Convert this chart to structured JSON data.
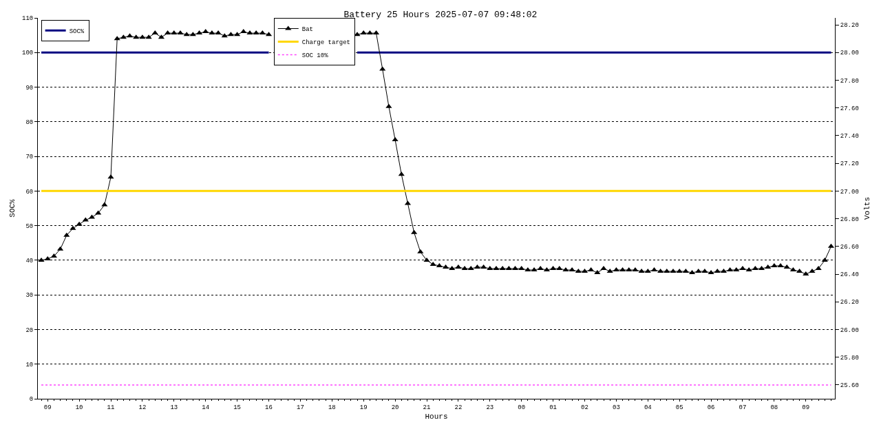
{
  "chart_data": {
    "type": "line",
    "title": "Battery 25 Hours 2025-07-07 09:48:02",
    "xlabel": "Hours",
    "ylabel": "SOC%",
    "y2label": "Volts",
    "categories": [
      null,
      "09",
      null,
      null,
      null,
      null,
      "10",
      null,
      null,
      null,
      null,
      "11",
      null,
      null,
      null,
      null,
      "12",
      null,
      null,
      null,
      null,
      "13",
      null,
      null,
      null,
      null,
      "14",
      null,
      null,
      null,
      null,
      "15",
      null,
      null,
      null,
      null,
      "16",
      null,
      null,
      null,
      null,
      "17",
      null,
      null,
      null,
      null,
      "18",
      null,
      null,
      null,
      null,
      "19",
      null,
      null,
      null,
      null,
      "20",
      null,
      null,
      null,
      null,
      "21",
      null,
      null,
      null,
      null,
      "22",
      null,
      null,
      null,
      null,
      "23",
      null,
      null,
      null,
      null,
      "00",
      null,
      null,
      null,
      null,
      "01",
      null,
      null,
      null,
      null,
      "02",
      null,
      null,
      null,
      null,
      "03",
      null,
      null,
      null,
      null,
      "04",
      null,
      null,
      null,
      null,
      "05",
      null,
      null,
      null,
      null,
      "06",
      null,
      null,
      null,
      null,
      "07",
      null,
      null,
      null,
      null,
      "08",
      null,
      null,
      null,
      null,
      "09",
      null,
      null,
      null,
      null
    ],
    "ylim": [
      0,
      110
    ],
    "yticks": [
      0,
      10,
      20,
      30,
      40,
      50,
      60,
      70,
      80,
      90,
      100,
      110
    ],
    "y2lim": [
      25.5,
      28.25
    ],
    "y2ticks": [
      {
        "value": 25.6,
        "label": "25.60"
      },
      {
        "value": 25.8,
        "label": "25.80"
      },
      {
        "value": 26.0,
        "label": "26.00"
      },
      {
        "value": 26.2,
        "label": "26.20"
      },
      {
        "value": 26.4,
        "label": "26.40"
      },
      {
        "value": 26.6,
        "label": "26.60"
      },
      {
        "value": 26.8,
        "label": "26.80"
      },
      {
        "value": 27.0,
        "label": "27.00"
      },
      {
        "value": 27.2,
        "label": "27.20"
      },
      {
        "value": 27.4,
        "label": "27.40"
      },
      {
        "value": 27.6,
        "label": "27.60"
      },
      {
        "value": 27.8,
        "label": "27.80"
      },
      {
        "value": 28.0,
        "label": "28.00"
      },
      {
        "value": 28.2,
        "label": "28.20"
      }
    ],
    "grid": "y",
    "legend": "top left",
    "line_style": "solid",
    "marker": "none",
    "series": [
      {
        "name": "SOC%",
        "color": "#000080",
        "values": [
          100,
          100,
          100,
          100,
          100,
          100,
          100,
          100,
          100,
          100,
          100,
          100,
          100,
          100,
          100,
          100,
          100,
          100,
          100,
          100,
          100,
          100,
          100,
          100,
          100,
          100,
          100,
          100,
          100,
          100,
          100,
          100,
          100,
          100,
          100,
          100,
          100,
          null,
          null,
          null,
          null,
          null,
          null,
          null,
          null,
          null,
          null,
          null,
          null,
          null,
          100,
          100,
          100,
          100,
          100,
          100,
          100,
          100,
          100,
          100,
          100,
          100,
          100,
          100,
          100,
          100,
          100,
          100,
          100,
          100,
          100,
          100,
          100,
          100,
          100,
          100,
          100,
          100,
          100,
          100,
          100,
          100,
          100,
          100,
          100,
          100,
          100,
          100,
          100,
          100,
          100,
          100,
          100,
          100,
          100,
          100,
          100,
          100,
          100,
          100,
          100,
          100,
          100,
          100,
          100,
          100,
          100,
          100,
          100,
          100,
          100,
          100,
          100,
          100,
          100,
          100,
          100,
          100,
          100,
          100,
          100,
          100,
          100,
          100,
          100,
          100
        ]
      },
      {
        "name": "Bat",
        "color": "#000000",
        "axis": "y2",
        "marker": "triangle",
        "values": [
          26.5,
          26.51,
          26.53,
          26.58,
          26.68,
          26.73,
          26.76,
          26.79,
          26.81,
          26.84,
          26.9,
          27.1,
          28.1,
          28.11,
          28.12,
          28.11,
          28.11,
          28.11,
          28.14,
          28.11,
          28.14,
          28.14,
          28.14,
          28.13,
          28.13,
          28.14,
          28.15,
          28.14,
          28.14,
          28.12,
          28.13,
          28.13,
          28.15,
          28.14,
          28.14,
          28.14,
          28.13,
          null,
          null,
          null,
          null,
          null,
          null,
          null,
          null,
          null,
          null,
          null,
          null,
          null,
          28.13,
          28.14,
          28.14,
          28.14,
          27.88,
          27.61,
          27.37,
          27.12,
          26.91,
          26.7,
          26.56,
          26.5,
          26.47,
          26.46,
          26.45,
          26.44,
          26.45,
          26.44,
          26.44,
          26.45,
          26.45,
          26.44,
          26.44,
          26.44,
          26.44,
          26.44,
          26.44,
          26.43,
          26.43,
          26.44,
          26.43,
          26.44,
          26.44,
          26.43,
          26.43,
          26.42,
          26.42,
          26.43,
          26.41,
          26.44,
          26.42,
          26.43,
          26.43,
          26.43,
          26.43,
          26.42,
          26.42,
          26.43,
          26.42,
          26.42,
          26.42,
          26.42,
          26.42,
          26.41,
          26.42,
          26.42,
          26.41,
          26.42,
          26.42,
          26.43,
          26.43,
          26.44,
          26.43,
          26.44,
          26.44,
          26.45,
          26.46,
          26.46,
          26.45,
          26.43,
          26.42,
          26.4,
          26.42,
          26.44,
          26.5,
          26.6
        ]
      },
      {
        "name": "Charge target",
        "color": "#ffd700",
        "axis": "y2",
        "values": [
          27.0,
          27.0,
          27.0,
          27.0,
          27.0,
          27.0,
          27.0,
          27.0,
          27.0,
          27.0,
          27.0,
          27.0,
          27.0,
          27.0,
          27.0,
          27.0,
          27.0,
          27.0,
          27.0,
          27.0,
          27.0,
          27.0,
          27.0,
          27.0,
          27.0,
          27.0,
          27.0,
          27.0,
          27.0,
          27.0,
          27.0,
          27.0,
          27.0,
          27.0,
          27.0,
          27.0,
          27.0,
          27.0,
          27.0,
          27.0,
          27.0,
          27.0,
          27.0,
          27.0,
          27.0,
          27.0,
          27.0,
          27.0,
          27.0,
          27.0,
          27.0,
          27.0,
          27.0,
          27.0,
          27.0,
          27.0,
          27.0,
          27.0,
          27.0,
          27.0,
          27.0,
          27.0,
          27.0,
          27.0,
          27.0,
          27.0,
          27.0,
          27.0,
          27.0,
          27.0,
          27.0,
          27.0,
          27.0,
          27.0,
          27.0,
          27.0,
          27.0,
          27.0,
          27.0,
          27.0,
          27.0,
          27.0,
          27.0,
          27.0,
          27.0,
          27.0,
          27.0,
          27.0,
          27.0,
          27.0,
          27.0,
          27.0,
          27.0,
          27.0,
          27.0,
          27.0,
          27.0,
          27.0,
          27.0,
          27.0,
          27.0,
          27.0,
          27.0,
          27.0,
          27.0,
          27.0,
          27.0,
          27.0,
          27.0,
          27.0,
          27.0,
          27.0,
          27.0,
          27.0,
          27.0,
          27.0,
          27.0,
          27.0,
          27.0,
          27.0,
          27.0,
          27.0,
          27.0,
          27.0,
          27.0,
          27.0
        ]
      },
      {
        "name": "SOC 10%",
        "color": "#ff44ff",
        "axis": "y2",
        "line_style": "dotted",
        "values": [
          25.6,
          25.6,
          25.6,
          25.6,
          25.6,
          25.6,
          25.6,
          25.6,
          25.6,
          25.6,
          25.6,
          25.6,
          25.6,
          25.6,
          25.6,
          25.6,
          25.6,
          25.6,
          25.6,
          25.6,
          25.6,
          25.6,
          25.6,
          25.6,
          25.6,
          25.6,
          25.6,
          25.6,
          25.6,
          25.6,
          25.6,
          25.6,
          25.6,
          25.6,
          25.6,
          25.6,
          25.6,
          25.6,
          25.6,
          25.6,
          25.6,
          25.6,
          25.6,
          25.6,
          25.6,
          25.6,
          25.6,
          25.6,
          25.6,
          25.6,
          25.6,
          25.6,
          25.6,
          25.6,
          25.6,
          25.6,
          25.6,
          25.6,
          25.6,
          25.6,
          25.6,
          25.6,
          25.6,
          25.6,
          25.6,
          25.6,
          25.6,
          25.6,
          25.6,
          25.6,
          25.6,
          25.6,
          25.6,
          25.6,
          25.6,
          25.6,
          25.6,
          25.6,
          25.6,
          25.6,
          25.6,
          25.6,
          25.6,
          25.6,
          25.6,
          25.6,
          25.6,
          25.6,
          25.6,
          25.6,
          25.6,
          25.6,
          25.6,
          25.6,
          25.6,
          25.6,
          25.6,
          25.6,
          25.6,
          25.6,
          25.6,
          25.6,
          25.6,
          25.6,
          25.6,
          25.6,
          25.6,
          25.6,
          25.6,
          25.6,
          25.6,
          25.6,
          25.6,
          25.6,
          25.6,
          25.6,
          25.6,
          25.6,
          25.6,
          25.6,
          25.6,
          25.6,
          25.6,
          25.6,
          25.6,
          25.6
        ]
      }
    ]
  }
}
